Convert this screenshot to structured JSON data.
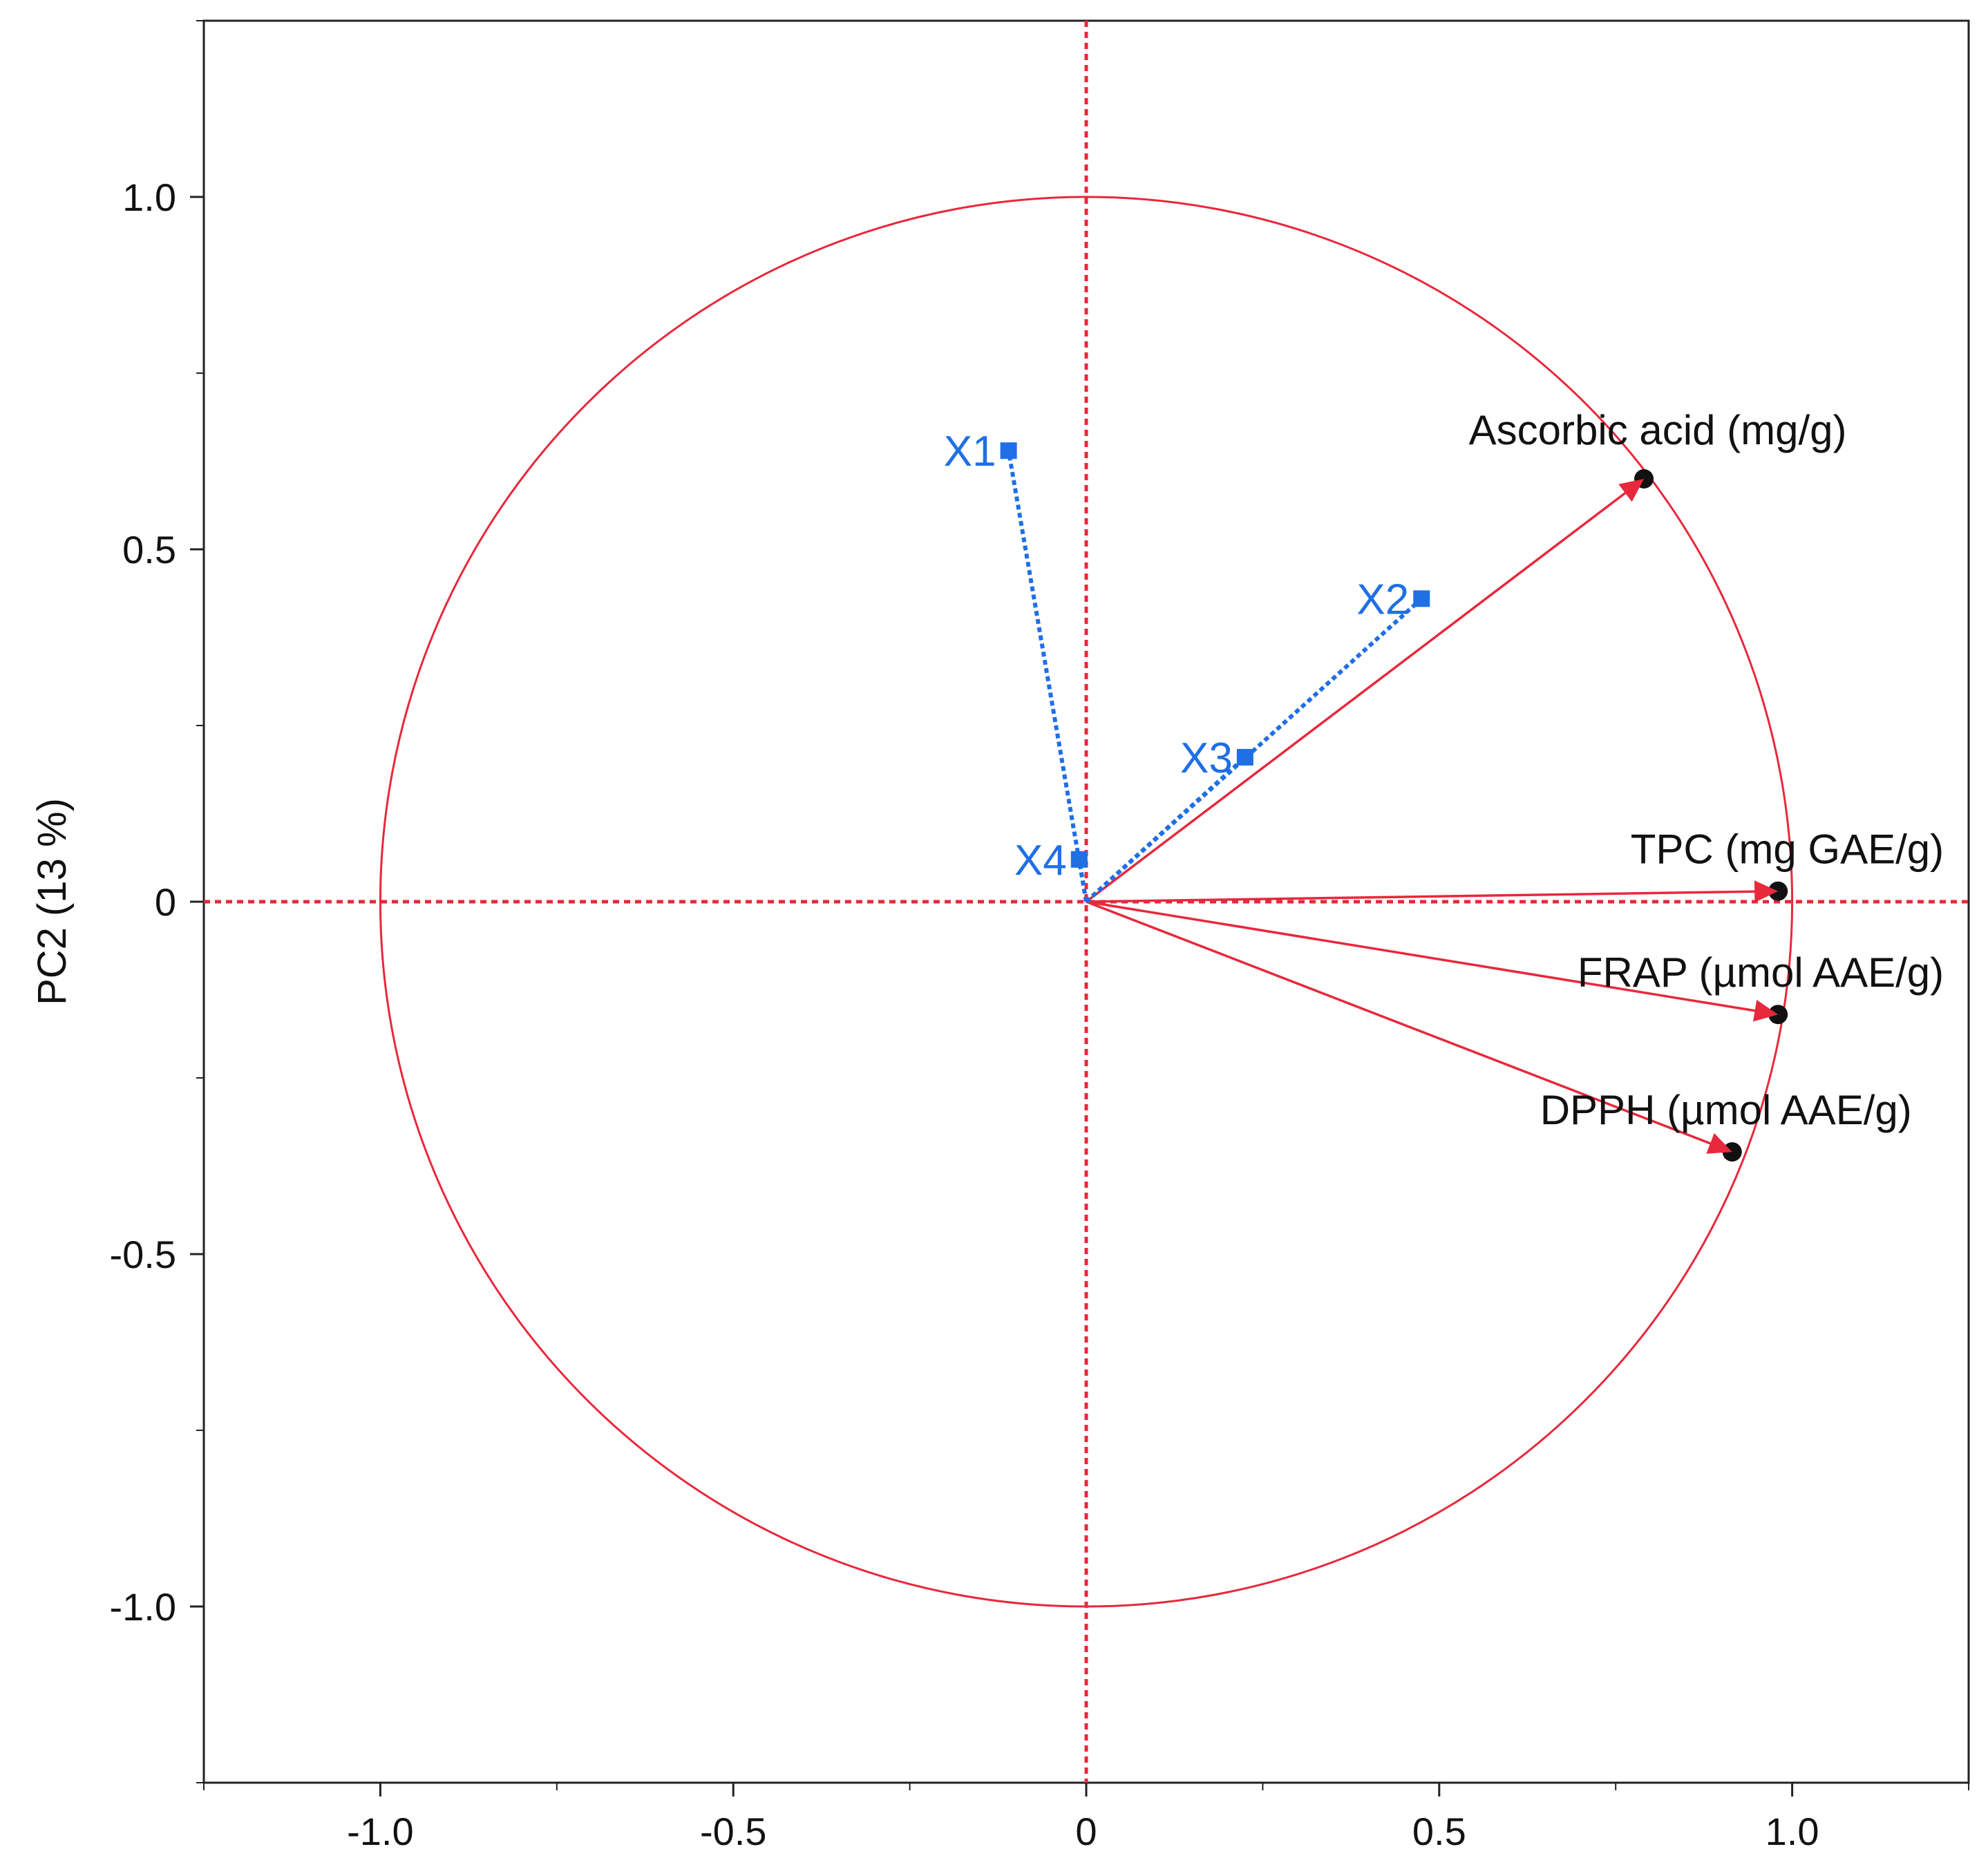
{
  "chart_data": {
    "type": "scatter",
    "subtype": "pca-loading-plot",
    "title": "",
    "xlabel": "",
    "ylabel": "PC2  (13 %)",
    "xlim": [
      -1.25,
      1.25
    ],
    "ylim": [
      -1.25,
      1.25
    ],
    "x_ticks": [
      -1.0,
      -0.5,
      0,
      0.5,
      1.0
    ],
    "x_tick_labels": [
      "-1.0",
      "-0.5",
      "0",
      "0.5",
      "1.0"
    ],
    "y_ticks": [
      -1.0,
      -0.5,
      0,
      0.5,
      1.0
    ],
    "y_tick_labels": [
      "-1.0",
      "-0.5",
      "0",
      "0.5",
      "1.0"
    ],
    "grid": false,
    "unit_circle": true,
    "reference_lines": {
      "x": 0,
      "y": 0,
      "style": "dashed",
      "color": "#e8283c"
    },
    "series": [
      {
        "name": "",
        "marker": "circle",
        "line_style": "solid",
        "color": "#e8283c",
        "marker_color": "#111111",
        "points": [
          {
            "label": "Ascorbic acid (mg/g)",
            "x": 0.79,
            "y": 0.6
          },
          {
            "label": "TPC (mg GAE/g)",
            "x": 0.98,
            "y": 0.015
          },
          {
            "label": "FRAP (µmol AAE/g)",
            "x": 0.98,
            "y": -0.16
          },
          {
            "label": "DPPH (µmol AAE/g)",
            "x": 0.915,
            "y": -0.355
          }
        ]
      },
      {
        "name": "",
        "marker": "square",
        "line_style": "dotted",
        "color": "#1f6fe5",
        "points": [
          {
            "label": "X1",
            "x": -0.11,
            "y": 0.64
          },
          {
            "label": "X2",
            "x": 0.475,
            "y": 0.43
          },
          {
            "label": "X3",
            "x": 0.225,
            "y": 0.205
          },
          {
            "label": "X4",
            "x": -0.01,
            "y": 0.06
          }
        ]
      }
    ]
  }
}
